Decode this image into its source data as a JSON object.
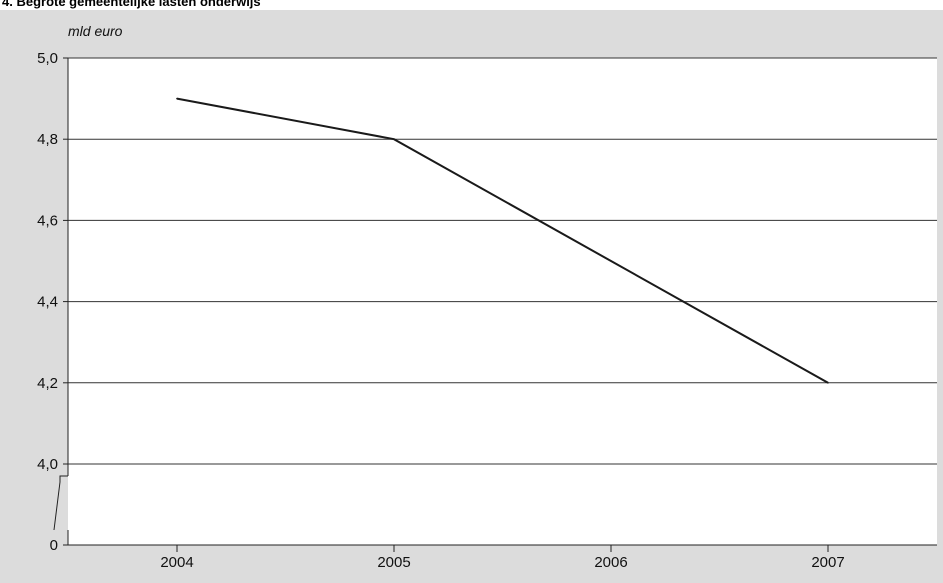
{
  "chart_data": {
    "type": "line",
    "title": "4. Begrote gemeentelijke lasten onderwijs",
    "unit_label": "mld euro",
    "categories": [
      "2004",
      "2005",
      "2006",
      "2007"
    ],
    "series": [
      {
        "values": [
          4.9,
          4.8,
          4.5,
          4.2
        ]
      }
    ],
    "y_ticks": [
      {
        "value": 5.0,
        "label": "5,0"
      },
      {
        "value": 4.8,
        "label": "4,8"
      },
      {
        "value": 4.6,
        "label": "4,6"
      },
      {
        "value": 4.4,
        "label": "4,4"
      },
      {
        "value": 4.2,
        "label": "4,2"
      },
      {
        "value": 4.0,
        "label": "4,0"
      }
    ],
    "y_zero_label": "0",
    "ylim": [
      4.0,
      5.0
    ],
    "axis_break": true,
    "grid": true,
    "colors": {
      "background": "#dcdcdc",
      "plot_area": "#ffffff",
      "line": "#1a1a1a",
      "gridline": "#333333"
    }
  }
}
